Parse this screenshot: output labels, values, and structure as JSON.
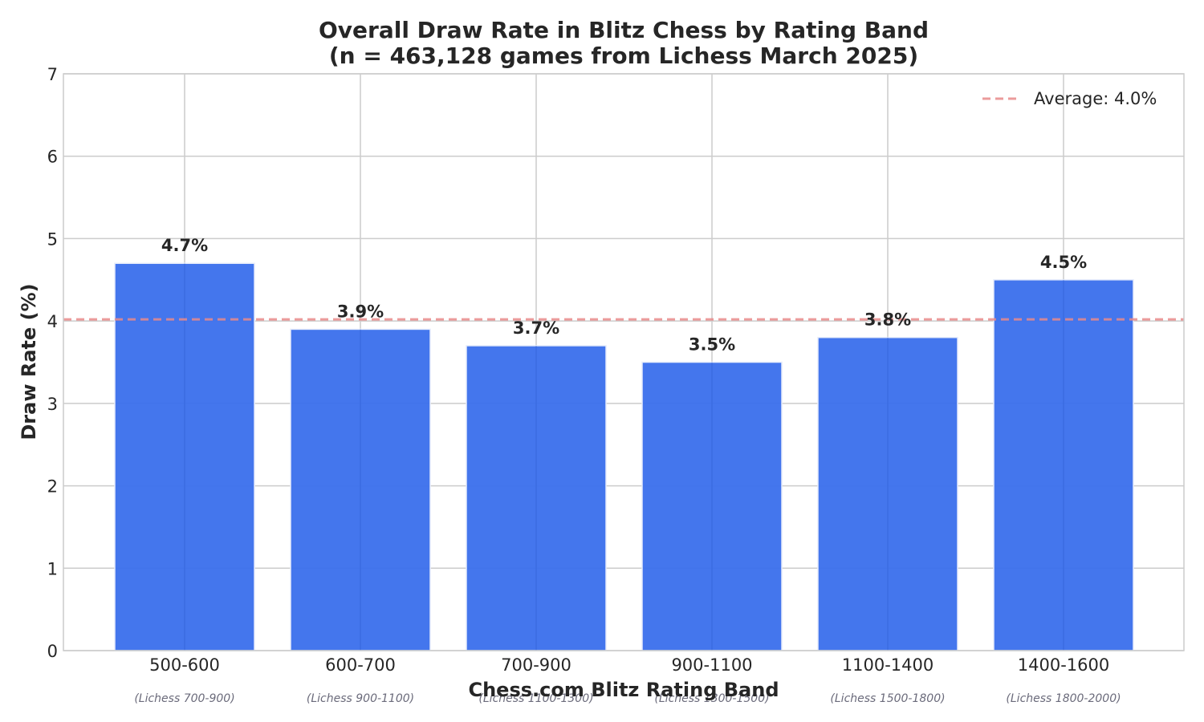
{
  "chart_data": {
    "type": "bar",
    "title": "Overall Draw Rate in Blitz Chess by Rating Band",
    "subtitle": "(n = 463,128 games from Lichess March 2025)",
    "xlabel": "Chess.com Blitz Rating Band",
    "ylabel": "Draw Rate (%)",
    "ylim": [
      0,
      7
    ],
    "yticks": [
      "0",
      "1",
      "2",
      "3",
      "4",
      "5",
      "6",
      "7"
    ],
    "categories": [
      "500-600",
      "600-700",
      "700-900",
      "900-1100",
      "1100-1400",
      "1400-1600"
    ],
    "sub_categories": [
      "(Lichess 700-900)",
      "(Lichess 900-1100)",
      "(Lichess 1100-1300)",
      "(Lichess 1300-1500)",
      "(Lichess 1500-1800)",
      "(Lichess 1800-2000)"
    ],
    "values": [
      4.7,
      3.9,
      3.7,
      3.5,
      3.8,
      4.5
    ],
    "data_labels": [
      "4.7%",
      "3.9%",
      "3.7%",
      "3.5%",
      "3.8%",
      "4.5%"
    ],
    "reference_line": {
      "value": 4.02,
      "label": "Average: 4.0%",
      "style": "dashed"
    },
    "grid": true,
    "legend_position": "top-right",
    "colors": {
      "bar": "#3a6fec",
      "reference": "#e88a8a",
      "grid": "#cccccc"
    }
  }
}
